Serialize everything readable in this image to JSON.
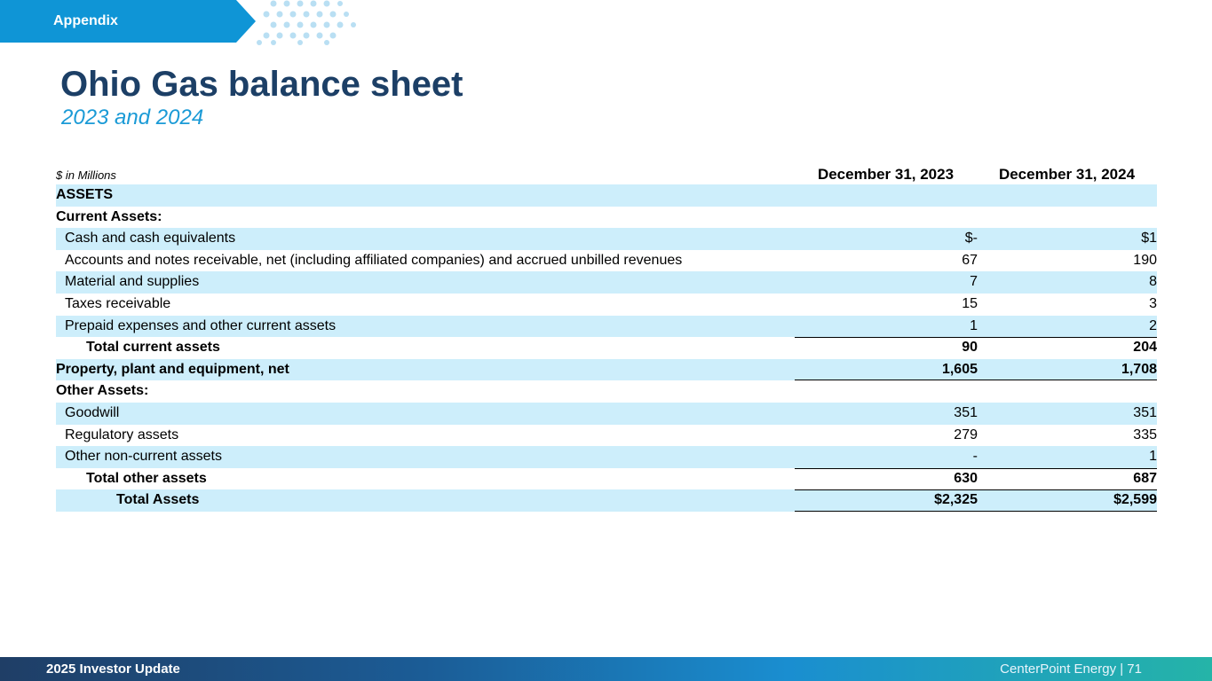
{
  "section_tag": "Appendix",
  "title": "Ohio Gas balance sheet",
  "subtitle": "2023 and 2024",
  "table": {
    "units_label": "$ in Millions",
    "col1_header": "December 31, 2023",
    "col2_header": "December 31, 2024",
    "rows": [
      {
        "label": "ASSETS",
        "v1": "",
        "v2": ""
      },
      {
        "label": "Current Assets:",
        "v1": "",
        "v2": ""
      },
      {
        "label": "Cash and cash equivalents",
        "v1": "$-",
        "v2": "$1"
      },
      {
        "label": "Accounts and notes receivable, net (including affiliated companies) and accrued unbilled revenues",
        "v1": "67",
        "v2": "190"
      },
      {
        "label": "Material and supplies",
        "v1": "7",
        "v2": "8"
      },
      {
        "label": "Taxes receivable",
        "v1": "15",
        "v2": "3"
      },
      {
        "label": "Prepaid expenses and other current assets",
        "v1": "1",
        "v2": "2"
      },
      {
        "label": "Total current assets",
        "v1": "90",
        "v2": "204"
      },
      {
        "label": "Property, plant and equipment, net",
        "v1": "1,605",
        "v2": "1,708"
      },
      {
        "label": "Other Assets:",
        "v1": "",
        "v2": ""
      },
      {
        "label": "Goodwill",
        "v1": "351",
        "v2": "351"
      },
      {
        "label": "Regulatory assets",
        "v1": "279",
        "v2": "335"
      },
      {
        "label": "Other non-current assets",
        "v1": "-",
        "v2": "1"
      },
      {
        "label": "Total other assets",
        "v1": "630",
        "v2": "687"
      },
      {
        "label": "Total Assets",
        "v1": "$2,325",
        "v2": "$2,599"
      }
    ]
  },
  "footer": {
    "left": "2025 Investor Update",
    "right": "CenterPoint Energy | 71"
  },
  "colors": {
    "title": "#1c3f66",
    "subtitle": "#1a9ad6",
    "tag": "#0f95d6",
    "row_shade": "#cdeefb"
  }
}
